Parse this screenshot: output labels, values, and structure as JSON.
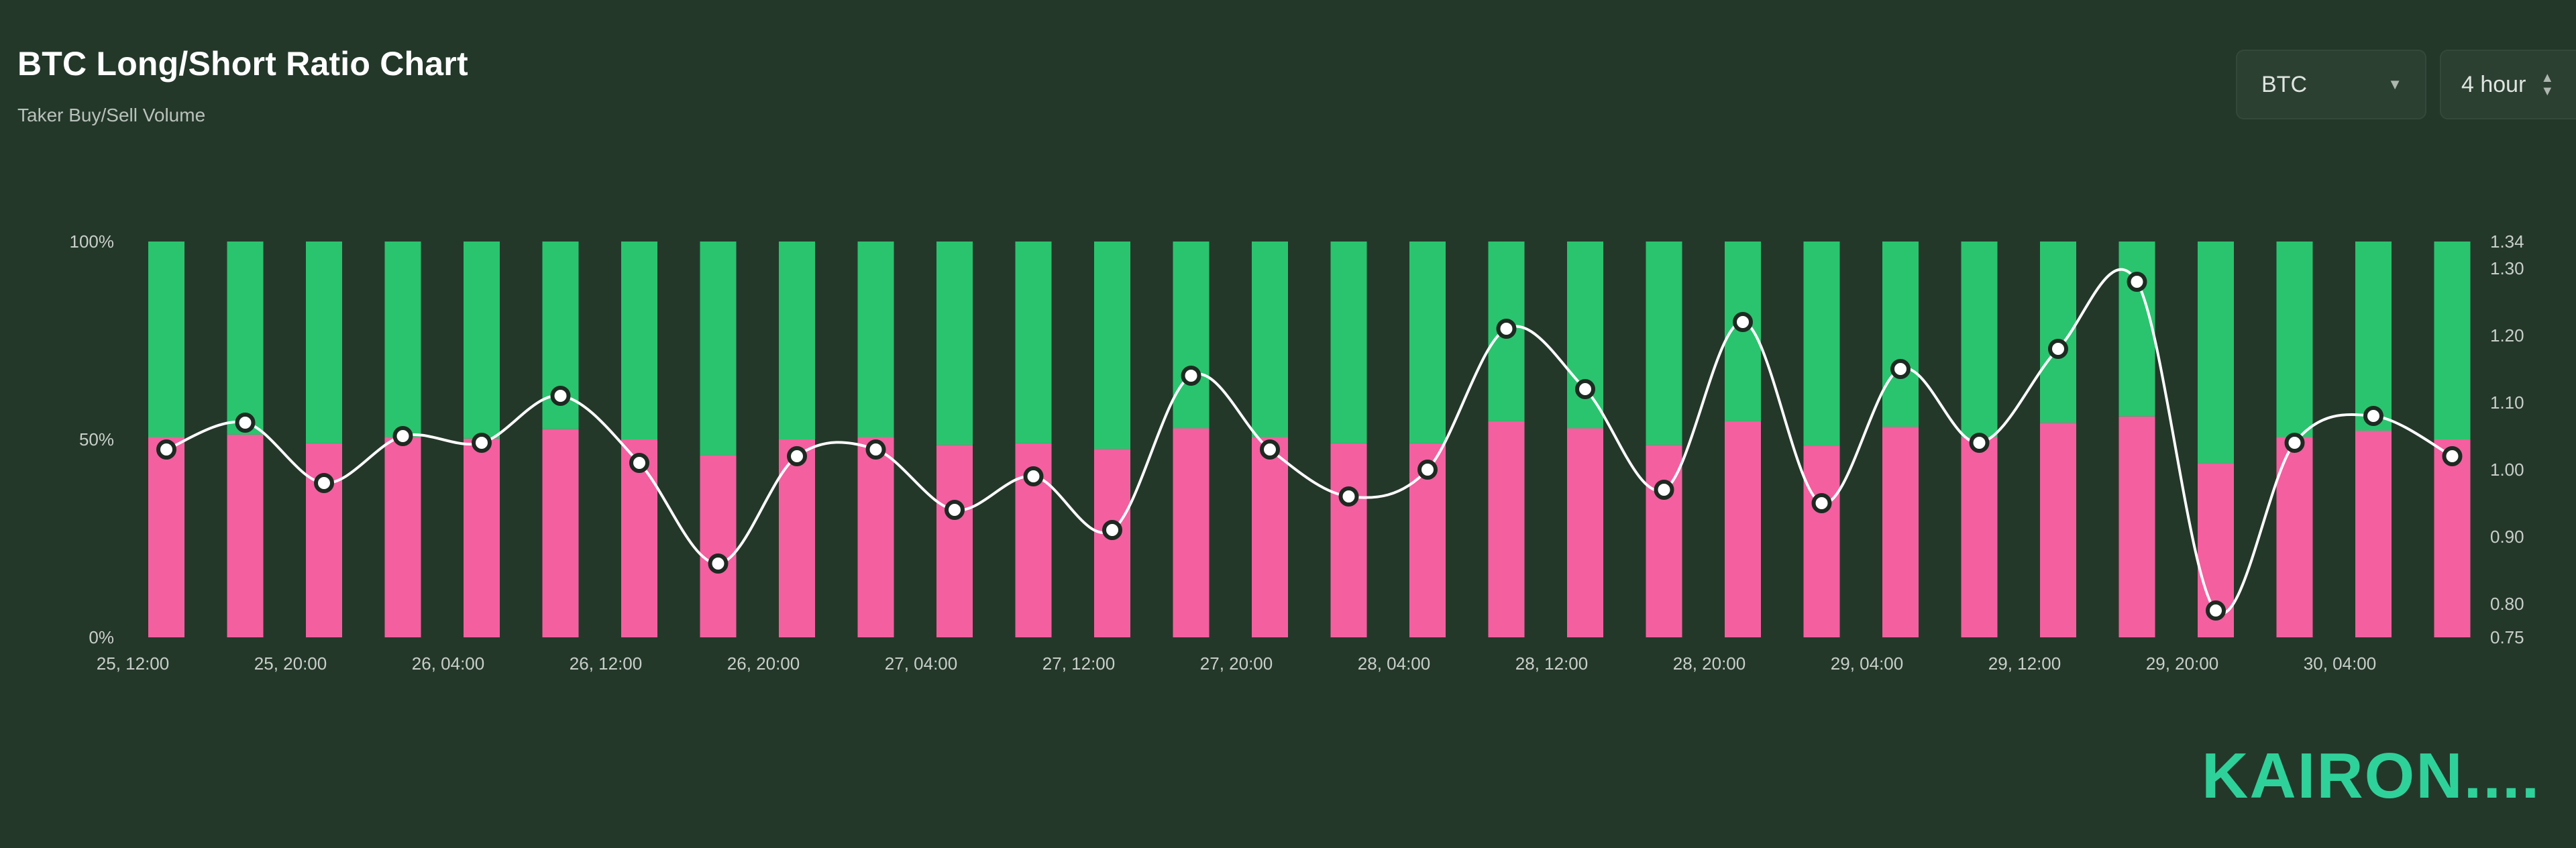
{
  "header": {
    "title": "BTC Long/Short Ratio Chart",
    "subtitle": "Taker Buy/Sell Volume"
  },
  "controls": {
    "coin_select": {
      "value": "BTC",
      "icon": "chevron-down-icon"
    },
    "interval_select": {
      "value": "4 hour",
      "icon": "updown-icon"
    }
  },
  "brand": {
    "logo_text": "KAIRON...."
  },
  "chart_data": {
    "type": "bar",
    "stacked_percent": true,
    "colors": {
      "long": "#2ac46e",
      "short": "#f45fa0",
      "ratio_line": "#ffffff"
    },
    "x_tick_labels": [
      "25, 12:00",
      "25, 20:00",
      "26, 04:00",
      "26, 12:00",
      "26, 20:00",
      "27, 04:00",
      "27, 12:00",
      "27, 20:00",
      "28, 04:00",
      "28, 12:00",
      "28, 20:00",
      "29, 04:00",
      "29, 12:00",
      "29, 20:00",
      "30, 04:00"
    ],
    "y_left_ticks": [
      "100%",
      "50%",
      "0%"
    ],
    "y_left_range": [
      0,
      100
    ],
    "y_right_ticks": [
      "1.34",
      "1.30",
      "1.20",
      "1.10",
      "1.00",
      "0.90",
      "0.80",
      "0.75"
    ],
    "y_right_range": [
      0.75,
      1.34
    ],
    "bar_count": 30,
    "series": [
      {
        "values": [
          50.6,
          51.2,
          49.0,
          50.6,
          50.2,
          52.6,
          50.0,
          46.0,
          50.0,
          50.6,
          48.6,
          49.0,
          47.6,
          52.8,
          50.6,
          49.0,
          49.0,
          54.6,
          52.8,
          48.6,
          54.6,
          48.4,
          53.2,
          50.6,
          54.2,
          55.8,
          44.0,
          50.6,
          52.2,
          50.0
        ]
      },
      {
        "values": [
          1.03,
          1.07,
          0.98,
          1.05,
          1.04,
          1.11,
          1.01,
          0.86,
          1.02,
          1.03,
          0.94,
          0.99,
          0.91,
          1.14,
          1.03,
          0.96,
          1.0,
          1.21,
          1.12,
          0.97,
          1.22,
          0.95,
          1.15,
          1.04,
          1.18,
          1.28,
          0.79,
          1.04,
          1.08,
          1.02
        ]
      }
    ]
  }
}
